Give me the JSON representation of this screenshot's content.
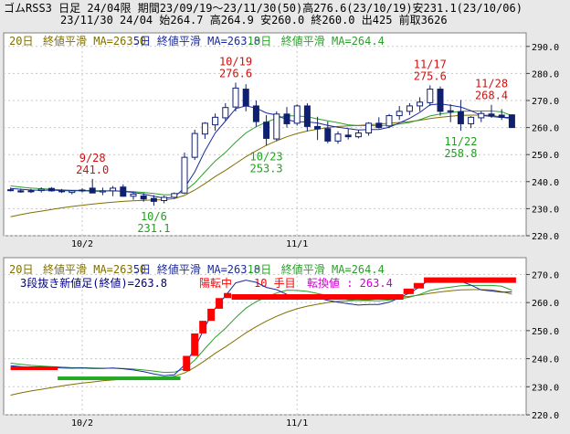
{
  "header": {
    "line1": "ゴムRSS3 日足 24/04限 期間23/09/19～23/11/30(50)高276.6(23/10/19)安231.1(23/10/06)",
    "line2": "23/11/30 24/04 始264.7 高264.9 安260.0 終260.0 出425 前取3626"
  },
  "colors": {
    "up_body": "#ffffff",
    "down_body": "#102070",
    "candle_edge": "#102070",
    "ma5": "#1a2aa0",
    "ma10": "#2aa02a",
    "ma20": "#807000",
    "high_label": "#d01010",
    "low_label": "#20a020",
    "kagi_up": "#ff0000",
    "kagi_down": "#22aa22",
    "frame_bg": "#e8e8e8",
    "grid": "#c8c8c8"
  },
  "chart_data": [
    {
      "type": "candlestick",
      "title": "ゴムRSS3 日足 24/04限",
      "ylim": [
        220,
        295
      ],
      "y_ticks": [
        220.0,
        230.0,
        240.0,
        250.0,
        260.0,
        270.0,
        280.0,
        290.0
      ],
      "y_tick_labels": [
        "220.0",
        "230.0",
        "240.0",
        "250.0",
        "260.0",
        "270.0",
        "280.0",
        "290.0"
      ],
      "x_tick_labels": [
        {
          "label": "10/2",
          "index": 7
        },
        {
          "label": "11/1",
          "index": 28
        }
      ],
      "x_range": [
        -0.5,
        49.5
      ],
      "ma_legend": [
        {
          "name": "20日",
          "rest": "終値平滑 MA=263.0",
          "color": "#807000"
        },
        {
          "name": "5日",
          "rest": "終値平滑 MA=263.8",
          "color": "#1a2aa0"
        },
        {
          "name": "10日",
          "rest": "終値平滑 MA=264.4",
          "color": "#2aa02a"
        }
      ],
      "ohlc": [
        [
          237.0,
          237.8,
          236.4,
          236.7
        ],
        [
          236.6,
          237.4,
          235.9,
          236.2
        ],
        [
          236.4,
          237.3,
          235.8,
          236.6
        ],
        [
          236.7,
          237.9,
          236.0,
          237.2
        ],
        [
          237.5,
          238.0,
          236.3,
          236.6
        ],
        [
          236.6,
          237.3,
          235.8,
          236.4
        ],
        [
          236.0,
          236.9,
          235.3,
          236.6
        ],
        [
          236.6,
          237.6,
          236.0,
          236.9
        ],
        [
          237.6,
          241.0,
          236.0,
          235.8
        ],
        [
          236.2,
          237.8,
          235.0,
          236.6
        ],
        [
          236.6,
          238.4,
          234.6,
          237.6
        ],
        [
          238.0,
          239.0,
          234.4,
          234.6
        ],
        [
          234.6,
          236.0,
          233.3,
          235.4
        ],
        [
          234.7,
          235.8,
          232.6,
          233.6
        ],
        [
          233.8,
          235.0,
          231.1,
          232.7
        ],
        [
          233.0,
          234.8,
          232.0,
          234.2
        ],
        [
          234.2,
          236.0,
          233.8,
          235.6
        ],
        [
          235.8,
          250.8,
          235.4,
          249.0
        ],
        [
          249.0,
          259.2,
          248.0,
          257.8
        ],
        [
          257.6,
          262.0,
          255.8,
          261.6
        ],
        [
          261.0,
          265.2,
          258.8,
          263.8
        ],
        [
          263.6,
          269.0,
          262.5,
          267.4
        ],
        [
          267.6,
          276.6,
          266.0,
          274.6
        ],
        [
          274.2,
          276.0,
          266.0,
          268.0
        ],
        [
          268.0,
          270.0,
          260.4,
          262.2
        ],
        [
          262.0,
          264.6,
          253.3,
          256.0
        ],
        [
          255.8,
          266.0,
          255.0,
          265.0
        ],
        [
          265.0,
          267.6,
          260.0,
          261.4
        ],
        [
          261.6,
          268.6,
          260.8,
          268.0
        ],
        [
          268.0,
          269.0,
          258.6,
          260.4
        ],
        [
          260.4,
          264.0,
          255.4,
          259.5
        ],
        [
          259.6,
          262.2,
          254.2,
          255.0
        ],
        [
          255.0,
          258.6,
          254.0,
          257.6
        ],
        [
          257.2,
          259.6,
          255.6,
          256.6
        ],
        [
          256.6,
          259.0,
          256.0,
          258.0
        ],
        [
          258.0,
          262.0,
          257.0,
          261.6
        ],
        [
          261.6,
          263.8,
          259.6,
          260.0
        ],
        [
          260.6,
          265.0,
          259.8,
          264.4
        ],
        [
          264.4,
          268.0,
          262.8,
          266.0
        ],
        [
          266.0,
          269.0,
          264.6,
          268.0
        ],
        [
          268.0,
          271.2,
          266.0,
          269.4
        ],
        [
          269.2,
          275.6,
          268.0,
          274.2
        ],
        [
          274.2,
          275.2,
          264.4,
          266.0
        ],
        [
          266.2,
          268.6,
          262.0,
          266.0
        ],
        [
          265.8,
          270.2,
          258.8,
          261.4
        ],
        [
          261.4,
          264.2,
          259.8,
          263.8
        ],
        [
          263.6,
          266.0,
          262.0,
          265.2
        ],
        [
          265.0,
          268.4,
          263.6,
          264.4
        ],
        [
          264.6,
          266.8,
          262.8,
          263.8
        ],
        [
          264.7,
          264.9,
          260.0,
          260.0
        ]
      ],
      "ma5": [
        237.5,
        237.2,
        236.9,
        236.8,
        236.9,
        236.7,
        236.6,
        236.7,
        236.5,
        236.5,
        236.7,
        236.4,
        236.0,
        235.4,
        234.6,
        233.9,
        234.3,
        237.7,
        243.6,
        251.4,
        258.0,
        262.4,
        267.0,
        268.0,
        267.2,
        265.4,
        264.6,
        262.9,
        262.1,
        262.1,
        261.7,
        260.8,
        260.1,
        259.6,
        259.1,
        259.3,
        259.3,
        260.1,
        261.7,
        263.4,
        265.6,
        268.4,
        268.7,
        268.2,
        267.6,
        266.2,
        264.5,
        264.1,
        263.7,
        263.8
      ],
      "ma10": [
        238.4,
        238.0,
        237.6,
        237.4,
        237.2,
        237.0,
        236.8,
        236.8,
        236.7,
        236.6,
        236.6,
        236.5,
        236.3,
        236.0,
        235.6,
        235.1,
        235.2,
        236.4,
        239.5,
        243.6,
        247.6,
        250.8,
        254.6,
        258.0,
        260.3,
        262.0,
        263.4,
        264.4,
        264.3,
        264.0,
        263.2,
        262.5,
        261.8,
        261.0,
        260.7,
        260.7,
        260.6,
        260.9,
        261.3,
        261.9,
        262.9,
        264.3,
        265.0,
        265.5,
        266.0,
        266.1,
        266.1,
        266.1,
        265.8,
        264.4
      ],
      "ma20": [
        227.0,
        227.8,
        228.5,
        229.1,
        229.7,
        230.3,
        230.8,
        231.3,
        231.7,
        232.1,
        232.4,
        232.7,
        232.9,
        233.1,
        233.2,
        233.3,
        233.7,
        234.9,
        236.9,
        239.3,
        241.9,
        244.2,
        246.7,
        249.2,
        251.4,
        253.4,
        255.1,
        256.6,
        257.8,
        258.7,
        259.4,
        260.0,
        260.4,
        260.6,
        260.8,
        261.0,
        261.3,
        261.6,
        261.9,
        262.2,
        262.7,
        263.3,
        263.8,
        264.2,
        264.5,
        264.6,
        264.6,
        264.5,
        263.9,
        263.0
      ],
      "annotations": [
        {
          "date": "9/28",
          "value": "241.0",
          "index": 8,
          "price": 241.0,
          "kind": "high"
        },
        {
          "date": "10/6",
          "value": "231.1",
          "index": 14,
          "price": 231.1,
          "kind": "low"
        },
        {
          "date": "10/19",
          "value": "276.6",
          "index": 22,
          "price": 276.6,
          "kind": "high"
        },
        {
          "date": "10/23",
          "value": "253.3",
          "index": 25,
          "price": 253.3,
          "kind": "low"
        },
        {
          "date": "11/17",
          "value": "275.6",
          "index": 41,
          "price": 275.6,
          "kind": "high"
        },
        {
          "date": "11/22",
          "value": "258.8",
          "index": 44,
          "price": 258.8,
          "kind": "low"
        },
        {
          "date": "11/28",
          "value": "268.4",
          "index": 47,
          "price": 268.4,
          "kind": "high"
        }
      ]
    },
    {
      "type": "line",
      "title": "3段抜き新値足(終値)=263.8",
      "ylim": [
        220,
        276
      ],
      "y_ticks": [
        220.0,
        230.0,
        240.0,
        250.0,
        260.0,
        270.0
      ],
      "y_tick_labels": [
        "220.0",
        "230.0",
        "240.0",
        "250.0",
        "260.0",
        "270.0"
      ],
      "x_tick_labels": [
        {
          "label": "10/2",
          "index": 7
        },
        {
          "label": "11/1",
          "index": 28
        }
      ],
      "ma_legend": [
        {
          "name": "20日",
          "rest": "終値平滑 MA=263.0",
          "color": "#807000"
        },
        {
          "name": "5日",
          "rest": "終値平滑 MA=263.8",
          "color": "#1a2aa0"
        },
        {
          "name": "10日",
          "rest": "終値平滑 MA=264.4",
          "color": "#2aa02a"
        }
      ],
      "status": {
        "lead": "3段抜き新値足(終値)=263.8",
        "trend": "陽転中",
        "count": "10 手目",
        "turn_label": "転換値 : 263.4"
      },
      "kagi_segments": [
        {
          "from_index": 0,
          "to_index": 4.6,
          "value": 236.6,
          "color": "up"
        },
        {
          "from_index": 4.6,
          "to_index": 16.6,
          "value": 233.0,
          "color": "down"
        }
      ],
      "kagi_blocks": [
        {
          "index": 17.2,
          "low": 235.6,
          "high": 241.0
        },
        {
          "index": 18.0,
          "low": 241.0,
          "high": 249.0
        },
        {
          "index": 18.8,
          "low": 249.0,
          "high": 253.5
        },
        {
          "index": 19.6,
          "low": 253.5,
          "high": 257.8
        },
        {
          "index": 20.4,
          "low": 257.8,
          "high": 261.6
        },
        {
          "index": 21.2,
          "low": 261.6,
          "high": 263.4
        }
      ],
      "kagi_flat": [
        {
          "from_index": 21.6,
          "to_index": 38.4,
          "value": 262.0
        },
        {
          "from_index": 38.4,
          "to_index": 39.4,
          "value": 264.0
        },
        {
          "from_index": 39.4,
          "to_index": 40.4,
          "value": 266.0
        },
        {
          "from_index": 40.4,
          "to_index": 49.4,
          "value": 268.0
        }
      ]
    }
  ]
}
